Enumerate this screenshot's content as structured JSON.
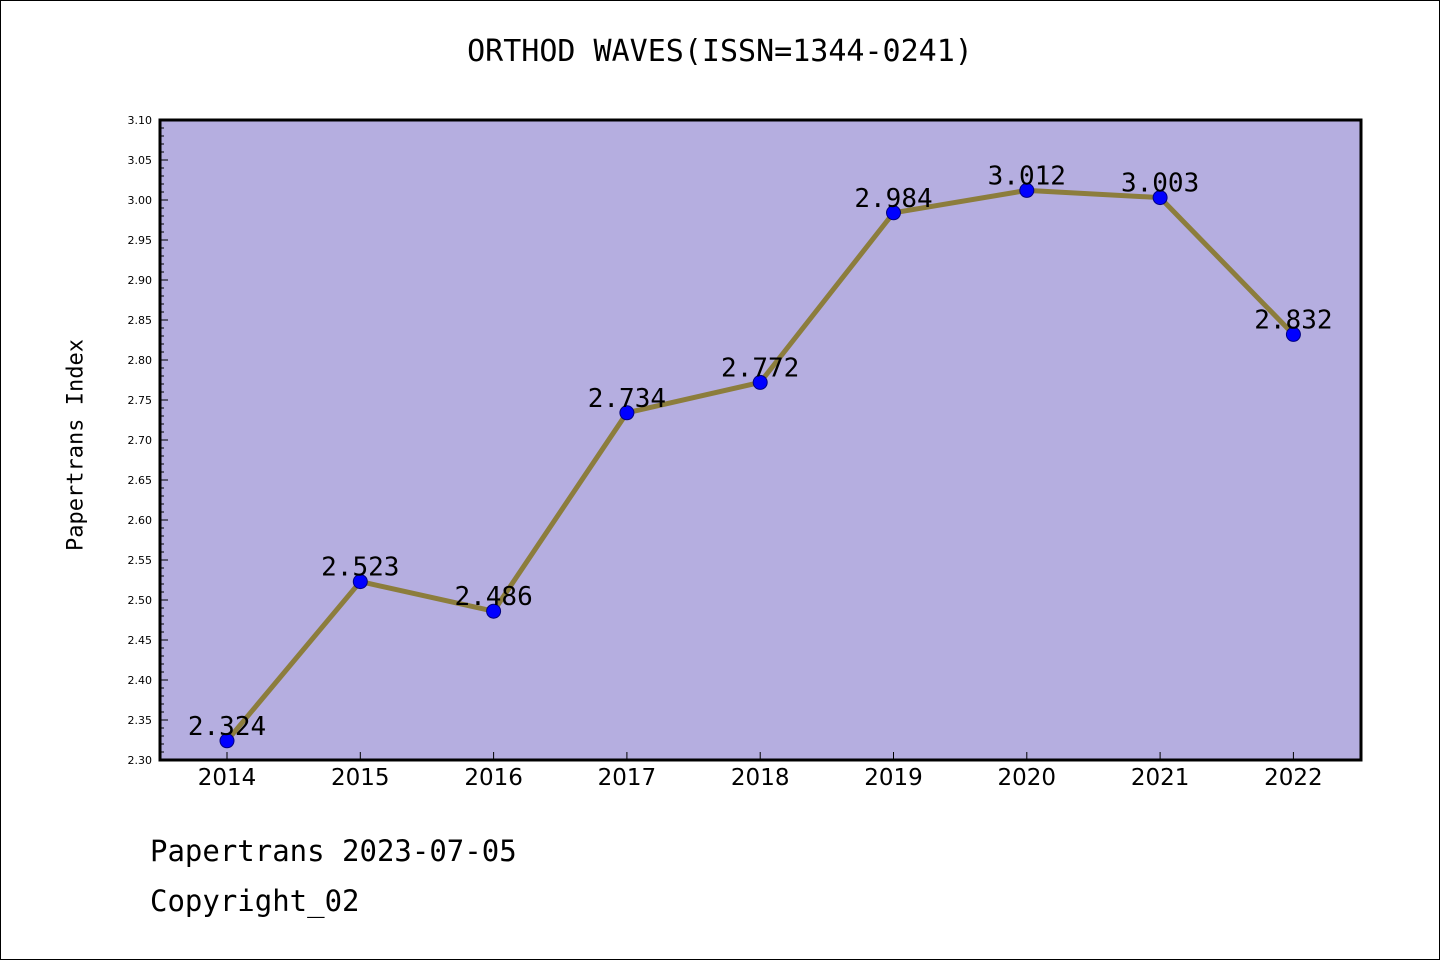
{
  "chart_data": {
    "type": "line",
    "title": "ORTHOD WAVES(ISSN=1344-0241)",
    "ylabel": "Papertrans Index",
    "xlabel": "",
    "x": [
      "2014",
      "2015",
      "2016",
      "2017",
      "2018",
      "2019",
      "2020",
      "2021",
      "2022"
    ],
    "series": [
      {
        "values": [
          2.324,
          2.523,
          2.486,
          2.734,
          2.772,
          2.984,
          3.012,
          3.003,
          2.832
        ]
      }
    ],
    "data_labels": [
      "2.324",
      "2.523",
      "2.486",
      "2.734",
      "2.772",
      "2.984",
      "3.012",
      "3.003",
      "2.832"
    ],
    "ylim": [
      2.3,
      3.1
    ],
    "yticks": [
      "2.30",
      "2.35",
      "2.40",
      "2.45",
      "2.50",
      "2.55",
      "2.60",
      "2.65",
      "2.70",
      "2.75",
      "2.80",
      "2.85",
      "2.90",
      "2.95",
      "3.00",
      "3.05",
      "3.10"
    ],
    "grid": false,
    "legend": "none",
    "colors": {
      "plot_background": "#b5aee0",
      "line": "#8c7d3c",
      "marker": "#0000ff",
      "marker_edge": "#000080"
    }
  },
  "footer": {
    "line1": "Papertrans 2023-07-05",
    "line2": "Copyright_02"
  }
}
